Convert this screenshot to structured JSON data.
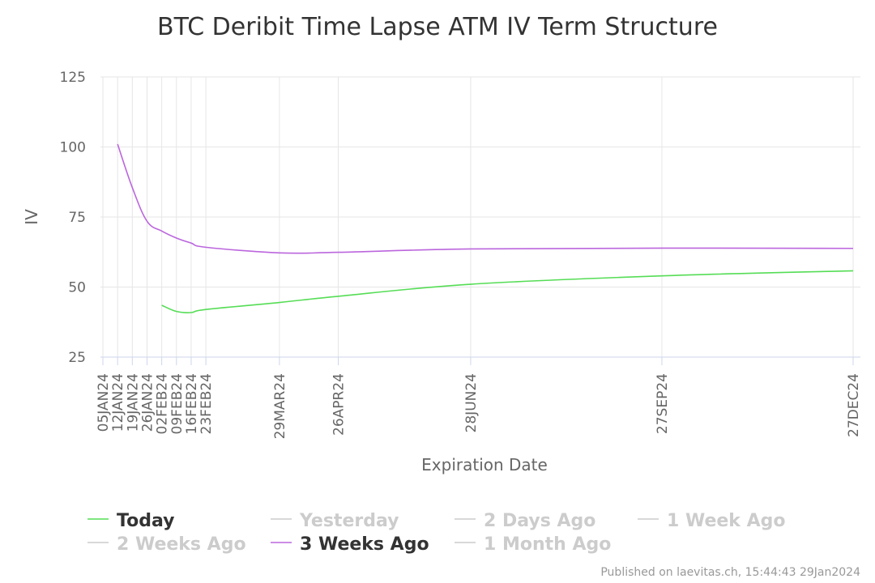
{
  "chart_data": {
    "type": "line",
    "title": "BTC Deribit Time Lapse ATM IV Term Structure",
    "xlabel": "Expiration Date",
    "ylabel": "IV",
    "ylim": [
      25,
      125
    ],
    "yticks": [
      "25",
      "50",
      "75",
      "100",
      "125"
    ],
    "x_dates": [
      "2024-01-05",
      "2024-01-12",
      "2024-01-19",
      "2024-01-26",
      "2024-02-02",
      "2024-02-09",
      "2024-02-16",
      "2024-02-23",
      "2024-03-29",
      "2024-04-26",
      "2024-06-28",
      "2024-09-27",
      "2024-12-27"
    ],
    "x_labels": [
      "05JAN24",
      "12JAN24",
      "19JAN24",
      "26JAN24",
      "02FEB24",
      "09FEB24",
      "16FEB24",
      "23FEB24",
      "29MAR24",
      "26APR24",
      "28JUN24",
      "27SEP24",
      "27DEC24"
    ],
    "grid": true,
    "legend_position": "bottom",
    "series": [
      {
        "name": "Today",
        "color": "#55dd55",
        "visible": true,
        "points": [
          [
            "2024-02-02",
            43.5
          ],
          [
            "2024-02-09",
            41.3
          ],
          [
            "2024-02-16",
            40.9
          ],
          [
            "2024-02-23",
            42.0
          ],
          [
            "2024-03-29",
            44.5
          ],
          [
            "2024-04-26",
            46.7
          ],
          [
            "2024-06-28",
            51.0
          ],
          [
            "2024-09-27",
            54.0
          ],
          [
            "2024-12-27",
            55.8
          ]
        ]
      },
      {
        "name": "Yesterday",
        "color": "#cccccc",
        "visible": false,
        "points": []
      },
      {
        "name": "2 Days Ago",
        "color": "#cccccc",
        "visible": false,
        "points": []
      },
      {
        "name": "1 Week Ago",
        "color": "#cccccc",
        "visible": false,
        "points": []
      },
      {
        "name": "2 Weeks Ago",
        "color": "#cccccc",
        "visible": false,
        "points": []
      },
      {
        "name": "3 Weeks Ago",
        "color": "#bb66dd",
        "visible": true,
        "points": [
          [
            "2024-01-12",
            101.0
          ],
          [
            "2024-01-19",
            85.5
          ],
          [
            "2024-01-26",
            73.5
          ],
          [
            "2024-02-02",
            70.0
          ],
          [
            "2024-02-09",
            67.5
          ],
          [
            "2024-02-16",
            65.7
          ],
          [
            "2024-02-23",
            64.2
          ],
          [
            "2024-03-29",
            62.2
          ],
          [
            "2024-04-26",
            62.4
          ],
          [
            "2024-06-28",
            63.6
          ],
          [
            "2024-09-27",
            63.9
          ],
          [
            "2024-12-27",
            63.8
          ]
        ]
      },
      {
        "name": "1 Month Ago",
        "color": "#cccccc",
        "visible": false,
        "points": []
      }
    ]
  },
  "legend": {
    "items": [
      "Today",
      "Yesterday",
      "2 Days Ago",
      "1 Week Ago",
      "2 Weeks Ago",
      "3 Weeks Ago",
      "1 Month Ago"
    ],
    "active_color": "#333333",
    "inactive_color": "#cccccc"
  },
  "credit": "Published on laevitas.ch, 15:44:43 29Jan2024"
}
